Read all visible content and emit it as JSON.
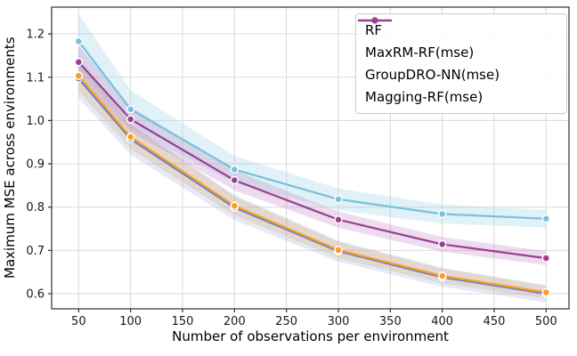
{
  "chart_data": {
    "type": "line",
    "title": "",
    "xlabel": "Number of observations per environment",
    "ylabel": "Maximum MSE across environments",
    "x": [
      50,
      100,
      200,
      300,
      400,
      500
    ],
    "xlim": [
      24,
      522
    ],
    "ylim": [
      0.565,
      1.262
    ],
    "grid": true,
    "legend_position": "upper right",
    "xtick_values": [
      50,
      100,
      150,
      200,
      250,
      300,
      350,
      400,
      450,
      500
    ],
    "xtick_labels": [
      "50",
      "100",
      "150",
      "200",
      "250",
      "300",
      "350",
      "400",
      "450",
      "500"
    ],
    "ytick_values": [
      0.6,
      0.7,
      0.8,
      0.9,
      1.0,
      1.1,
      1.2
    ],
    "ytick_labels": [
      "0.6",
      "0.7",
      "0.8",
      "0.9",
      "1.0",
      "1.1",
      "1.2"
    ],
    "series": [
      {
        "name": "RF",
        "color": "#5b84d6",
        "band_color": "#8a9ade",
        "band_opacity": 0.22,
        "values": [
          1.097,
          0.957,
          0.799,
          0.698,
          0.638,
          0.6
        ],
        "band": [
          0.045,
          0.036,
          0.029,
          0.024,
          0.022,
          0.02
        ]
      },
      {
        "name": "MaxRM-RF(mse)",
        "color": "#ff9c1e",
        "band_color": "#dfb272",
        "band_opacity": 0.3,
        "values": [
          1.103,
          0.962,
          0.803,
          0.701,
          0.641,
          0.603
        ],
        "band": [
          0.035,
          0.028,
          0.022,
          0.019,
          0.017,
          0.015
        ]
      },
      {
        "name": "GroupDRO-NN(mse)",
        "color": "#76c2dc",
        "band_color": "#9ed4e6",
        "band_opacity": 0.32,
        "values": [
          1.183,
          1.026,
          0.887,
          0.818,
          0.784,
          0.773
        ],
        "band": [
          0.063,
          0.044,
          0.031,
          0.025,
          0.022,
          0.02
        ]
      },
      {
        "name": "Magging-RF(mse)",
        "color": "#9a4092",
        "band_color": "#c083c0",
        "band_opacity": 0.28,
        "values": [
          1.135,
          1.003,
          0.862,
          0.771,
          0.714,
          0.682
        ],
        "band": [
          0.037,
          0.029,
          0.023,
          0.019,
          0.017,
          0.016
        ]
      }
    ],
    "style": {
      "grid_color": "#d9d9d9",
      "spine_color": "#2e2e2e",
      "tick_text_color": "#1a1a1a"
    }
  }
}
